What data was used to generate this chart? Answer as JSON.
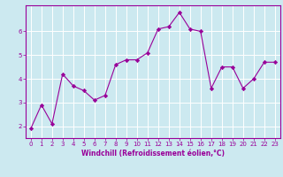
{
  "x": [
    0,
    1,
    2,
    3,
    4,
    5,
    6,
    7,
    8,
    9,
    10,
    11,
    12,
    13,
    14,
    15,
    16,
    17,
    18,
    19,
    20,
    21,
    22,
    23
  ],
  "y": [
    1.9,
    2.9,
    2.1,
    4.2,
    3.7,
    3.5,
    3.1,
    3.3,
    4.6,
    4.8,
    4.8,
    5.1,
    6.1,
    6.2,
    6.8,
    6.1,
    6.0,
    3.6,
    4.5,
    4.5,
    3.6,
    4.0,
    4.7,
    4.7
  ],
  "xlim": [
    -0.5,
    23.5
  ],
  "ylim": [
    1.5,
    7.1
  ],
  "yticks": [
    2,
    3,
    4,
    5,
    6
  ],
  "xticks": [
    0,
    1,
    2,
    3,
    4,
    5,
    6,
    7,
    8,
    9,
    10,
    11,
    12,
    13,
    14,
    15,
    16,
    17,
    18,
    19,
    20,
    21,
    22,
    23
  ],
  "xlabel": "Windchill (Refroidissement éolien,°C)",
  "line_color": "#990099",
  "marker": "D",
  "marker_size": 2.2,
  "bg_color": "#cce9f0",
  "grid_color": "#ffffff",
  "axis_color": "#990099",
  "tick_color": "#990099",
  "label_color": "#990099",
  "tick_fontsize": 5.0,
  "xlabel_fontsize": 5.5
}
